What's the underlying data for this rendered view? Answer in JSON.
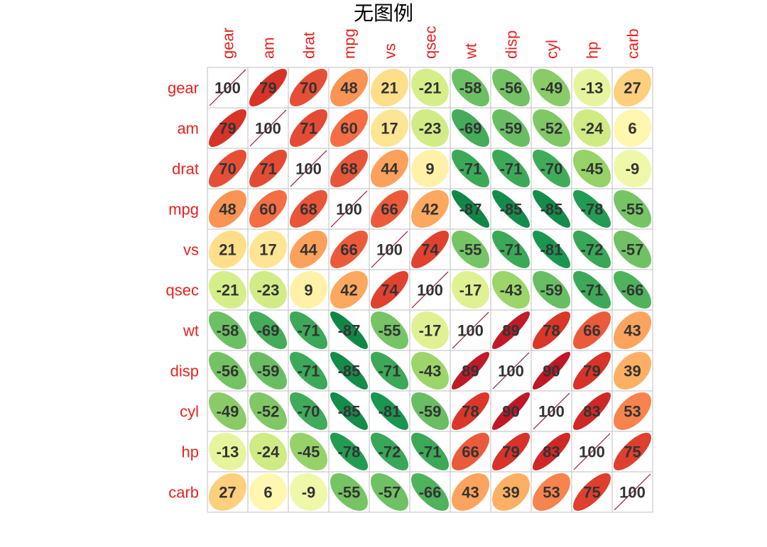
{
  "chart_data": {
    "type": "heatmap",
    "title": "无图例",
    "variables": [
      "gear",
      "am",
      "drat",
      "mpg",
      "vs",
      "qsec",
      "wt",
      "disp",
      "cyl",
      "hp",
      "carb"
    ],
    "value_scale": "correlation x 100",
    "matrix": [
      [
        100,
        79,
        70,
        48,
        21,
        -21,
        -58,
        -56,
        -49,
        -13,
        27
      ],
      [
        79,
        100,
        71,
        60,
        17,
        -23,
        -69,
        -59,
        -52,
        -24,
        6
      ],
      [
        70,
        71,
        100,
        68,
        44,
        9,
        -71,
        -71,
        -70,
        -45,
        -9
      ],
      [
        48,
        60,
        68,
        100,
        66,
        42,
        -87,
        -85,
        -85,
        -78,
        -55
      ],
      [
        21,
        17,
        44,
        66,
        100,
        74,
        -55,
        -71,
        -81,
        -72,
        -57
      ],
      [
        -21,
        -23,
        9,
        42,
        74,
        100,
        -17,
        -43,
        -59,
        -71,
        -66
      ],
      [
        -58,
        -69,
        -71,
        -87,
        -55,
        -17,
        100,
        89,
        78,
        66,
        43
      ],
      [
        -56,
        -59,
        -71,
        -85,
        -71,
        -43,
        89,
        100,
        90,
        79,
        39
      ],
      [
        -49,
        -52,
        -70,
        -85,
        -81,
        -59,
        78,
        90,
        100,
        83,
        53
      ],
      [
        -13,
        -24,
        -45,
        -78,
        -72,
        -71,
        66,
        79,
        83,
        100,
        75
      ],
      [
        27,
        6,
        -9,
        -55,
        -57,
        -66,
        43,
        39,
        53,
        75,
        100
      ]
    ],
    "legend": "none",
    "colors": {
      "label": "#e8211f",
      "grid": "#bfbfbf",
      "text": "#333333",
      "diagonal_line": "#8b1a3a",
      "palette_RdYlGn_reversed": [
        "#006837",
        "#1a9850",
        "#66bd63",
        "#a6d96a",
        "#d9ef8b",
        "#ffffbf",
        "#fee08b",
        "#fdae61",
        "#f46d43",
        "#d73027",
        "#a50026"
      ]
    }
  }
}
